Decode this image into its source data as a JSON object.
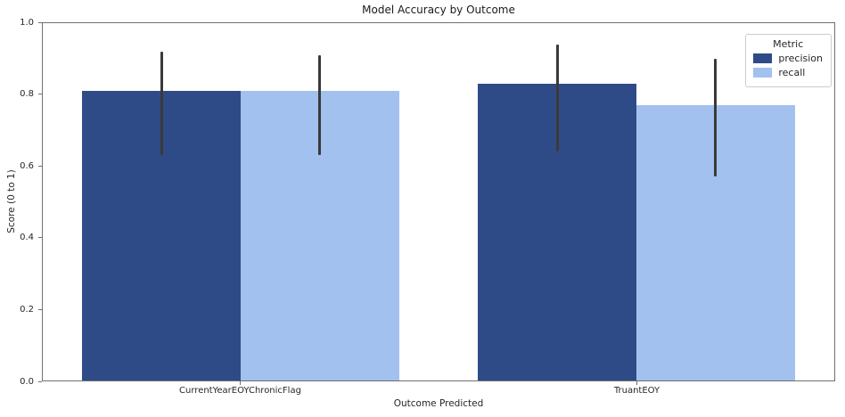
{
  "chart_data": {
    "type": "bar",
    "title": "Model Accuracy by Outcome",
    "xlabel": "Outcome Predicted",
    "ylabel": "Score (0 to 1)",
    "ylim": [
      0.0,
      1.0
    ],
    "y_ticks": [
      0.0,
      0.2,
      0.4,
      0.6,
      0.8,
      1.0
    ],
    "categories": [
      "CurrentYearEOYChronicFlag",
      "TruantEOY"
    ],
    "series": [
      {
        "name": "precision",
        "color": "#2f4b87",
        "values": [
          0.81,
          0.83
        ],
        "ci_low": [
          0.63,
          0.64
        ],
        "ci_high": [
          0.92,
          0.94
        ]
      },
      {
        "name": "recall",
        "color": "#a2c1ee",
        "values": [
          0.81,
          0.77
        ],
        "ci_low": [
          0.63,
          0.57
        ],
        "ci_high": [
          0.91,
          0.9
        ]
      }
    ],
    "error_bar_color": "#3a3a3a",
    "legend": {
      "title": "Metric",
      "position": "upper right",
      "entries": [
        "precision",
        "recall"
      ]
    },
    "grid": false
  }
}
